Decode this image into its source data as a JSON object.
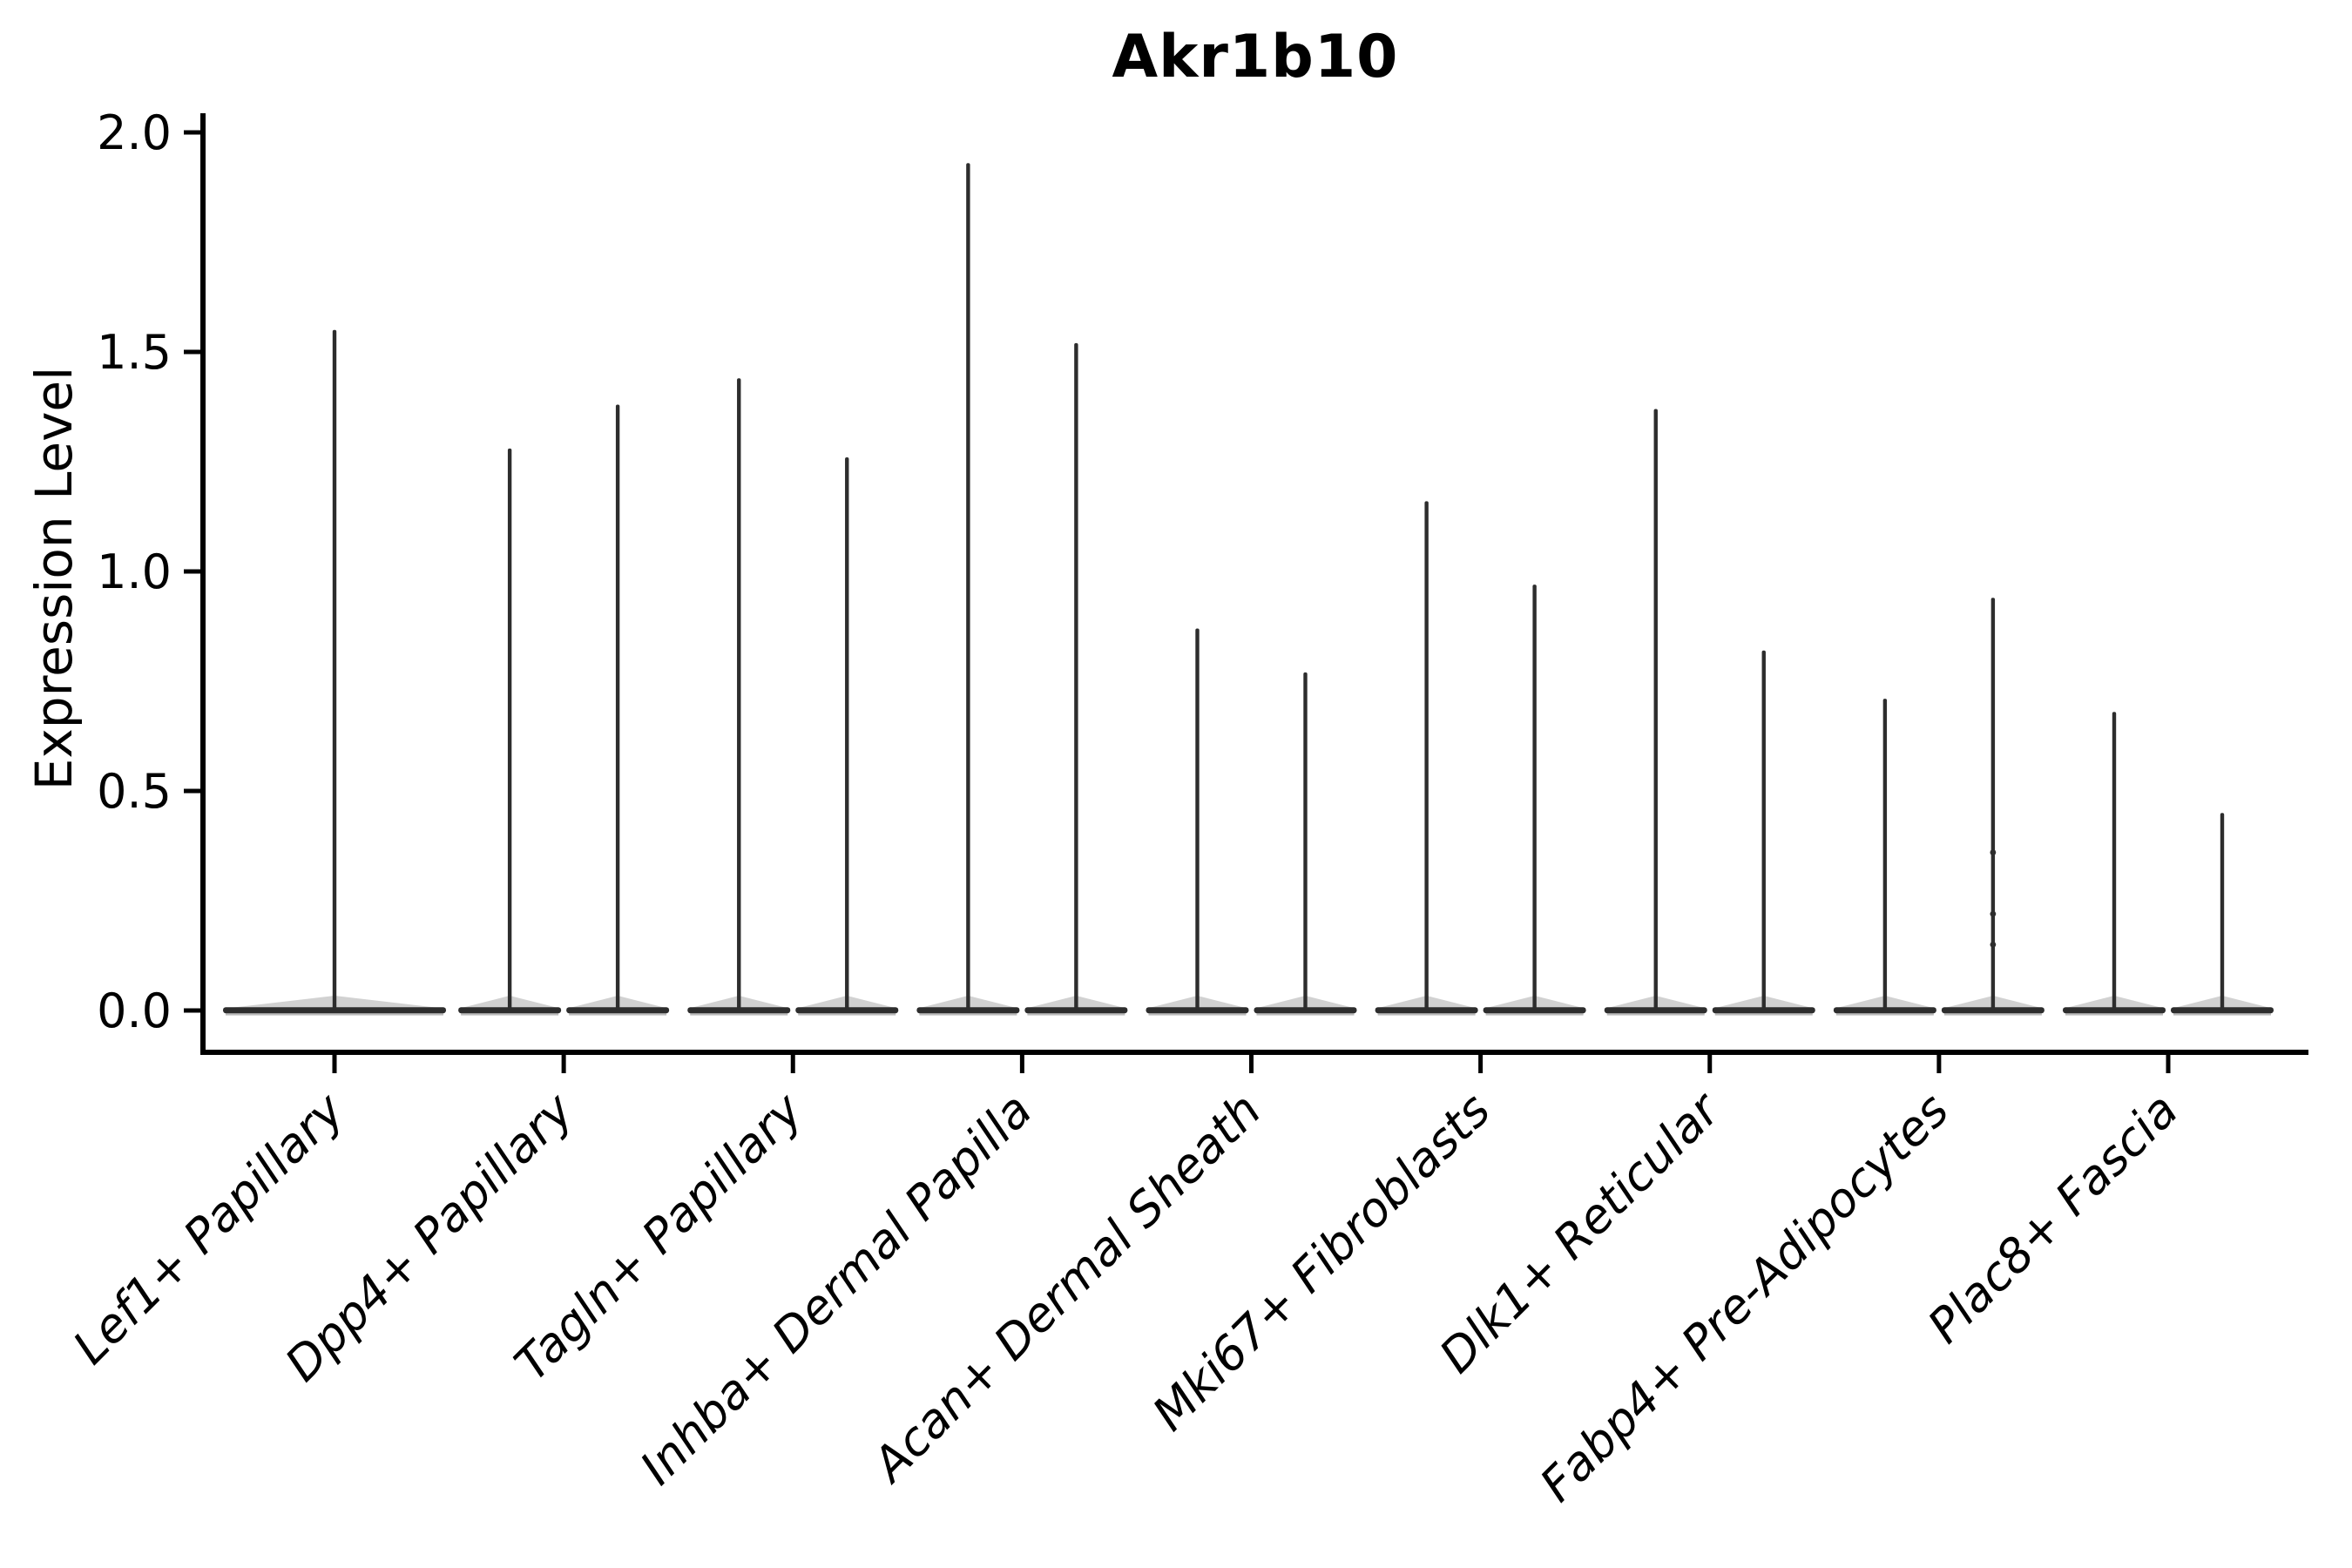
{
  "title": "Akr1b10",
  "chart_data": {
    "type": "violin",
    "title": "Akr1b10",
    "xlabel": "",
    "ylabel": "Expression Level",
    "ylim": [
      0.0,
      2.0
    ],
    "yticks": [
      0.0,
      0.5,
      1.0,
      1.5,
      2.0
    ],
    "ytick_labels": [
      "0.0",
      "0.5",
      "1.0",
      "1.5",
      "2.0"
    ],
    "grid": false,
    "legend": "none",
    "axis_color": "#000000",
    "violin_color": "#2d2d2d",
    "violin_edge_soft_color": "#b4b4b4",
    "categories": [
      "Lef1+ Papillary",
      "Dpp4+ Papillary",
      "Tagln+ Papillary",
      "Inhba+ Dermal Papilla",
      "Acan+ Dermal Sheath",
      "Mki67+ Fibroblasts",
      "Dlk1+ Reticular",
      "Fabp4+ Pre-Adipocytes",
      "Plac8+ Fascia"
    ],
    "groups": [
      {
        "category": "Lef1+ Papillary",
        "violins": [
          {
            "max": 1.55
          }
        ]
      },
      {
        "category": "Dpp4+ Papillary",
        "violins": [
          {
            "max": 1.28
          },
          {
            "max": 1.38
          }
        ]
      },
      {
        "category": "Tagln+ Papillary",
        "violins": [
          {
            "max": 1.44
          },
          {
            "max": 1.26
          }
        ]
      },
      {
        "category": "Inhba+ Dermal Papilla",
        "violins": [
          {
            "max": 1.93
          },
          {
            "max": 1.52
          }
        ]
      },
      {
        "category": "Acan+ Dermal Sheath",
        "violins": [
          {
            "max": 0.87
          },
          {
            "max": 0.77
          }
        ]
      },
      {
        "category": "Mki67+ Fibroblasts",
        "violins": [
          {
            "max": 1.16
          },
          {
            "max": 0.97
          }
        ]
      },
      {
        "category": "Dlk1+ Reticular",
        "violins": [
          {
            "max": 1.37
          },
          {
            "max": 0.82
          }
        ]
      },
      {
        "category": "Fabp4+ Pre-Adipocytes",
        "violins": [
          {
            "max": 0.71
          },
          {
            "max": 0.94,
            "points": [
              0.36,
              0.22,
              0.15
            ]
          }
        ]
      },
      {
        "category": "Plac8+ Fascia",
        "violins": [
          {
            "max": 0.68
          },
          {
            "max": 0.45
          }
        ]
      }
    ]
  }
}
